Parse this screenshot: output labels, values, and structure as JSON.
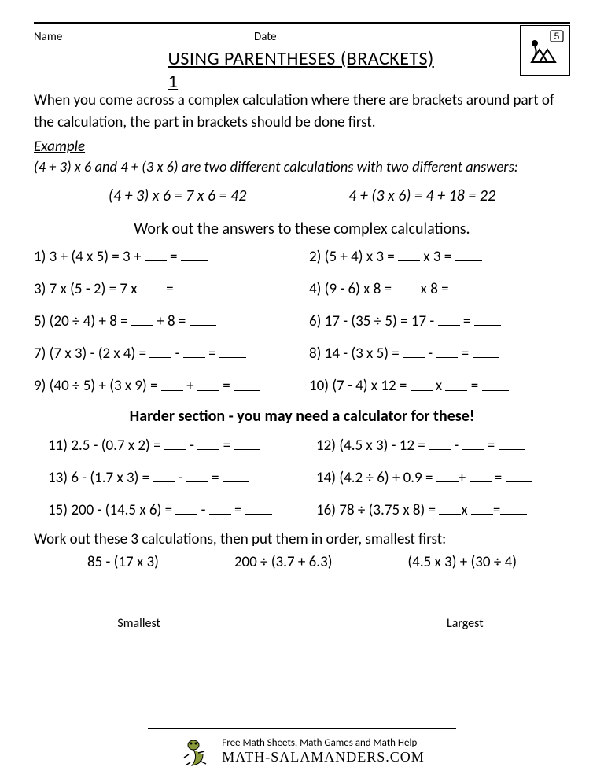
{
  "header": {
    "name_label": "Name",
    "date_label": "Date",
    "title": "USING PARENTHESES (BRACKETS) 1",
    "grade_badge": "5"
  },
  "intro": "When you come across a complex calculation where there are brackets around part of the calculation, the part in brackets should be done first.",
  "example": {
    "label": "Example",
    "text": "(4 + 3) x 6 and 4 + (3 x 6) are two different calculations with two different answers:",
    "worked_left": "(4 + 3) x 6 = 7 x 6 = 42",
    "worked_right": "4 + (3 x 6) = 4 + 18 = 22"
  },
  "instruction": "Work out the answers to these complex calculations.",
  "problems_main": [
    {
      "n": "1)",
      "pre": "3 + (4 x 5) = 3 + ",
      "mid": " = ",
      "tail": ""
    },
    {
      "n": "2)",
      "pre": "(5 + 4) x 3 = ",
      "mid": " x 3 = ",
      "tail": ""
    },
    {
      "n": "3)",
      "pre": "7 x (5 - 2) = 7 x ",
      "mid": " = ",
      "tail": ""
    },
    {
      "n": "4)",
      "pre": "(9 - 6) x 8 = ",
      "mid": " x 8 = ",
      "tail": ""
    },
    {
      "n": "5)",
      "pre": "(20 ÷ 4) + 8 = ",
      "mid": " + 8 = ",
      "tail": ""
    },
    {
      "n": "6)",
      "pre": "17 - (35 ÷ 5) = 17 - ",
      "mid": " = ",
      "tail": ""
    },
    {
      "n": "7)",
      "pre": "(7 x 3) - (2 x 4) = ",
      "mid": " - ",
      "mid2": " = ",
      "tail": ""
    },
    {
      "n": "8)",
      "pre": "14 - (3 x 5) = ",
      "mid": " - ",
      "mid2": " = ",
      "tail": ""
    },
    {
      "n": "9)",
      "pre": "(40 ÷ 5) + (3 x 9) = ",
      "mid": " + ",
      "mid2": " = ",
      "tail": ""
    },
    {
      "n": "10)",
      "pre": "(7 - 4) x 12 = ",
      "mid": " x ",
      "mid2": " = ",
      "tail": ""
    }
  ],
  "harder_heading": "Harder section - you may need a calculator for these!",
  "problems_harder": [
    {
      "n": "11)",
      "pre": "2.5 - (0.7 x 2) = ",
      "mid": " - ",
      "mid2": " = ",
      "tail": ""
    },
    {
      "n": "12)",
      "pre": "(4.5 x 3) - 12 = ",
      "mid": " - ",
      "mid2": " = ",
      "tail": ""
    },
    {
      "n": "13)",
      "pre": "6 - (1.7 x 3) = ",
      "mid": " - ",
      "mid2": " = ",
      "tail": ""
    },
    {
      "n": "14)",
      "pre": "(4.2 ÷ 6) + 0.9 = ",
      "mid": "+ ",
      "mid2": " = ",
      "tail": ""
    },
    {
      "n": "15)",
      "pre": "200 - (14.5 x 6) = ",
      "mid": " - ",
      "mid2": " = ",
      "tail": ""
    },
    {
      "n": "16)",
      "pre": "78 ÷ (3.75 x 8) = ",
      "mid": "x ",
      "mid2": "=",
      "tail": ""
    }
  ],
  "order": {
    "instruction": "Work out these 3 calculations, then put them in order, smallest first:",
    "items": [
      "85 - (17 x 3)",
      "200 ÷ (3.7 + 6.3)",
      "(4.5 x 3) + (30 ÷ 4)"
    ],
    "smallest_label": "Smallest",
    "largest_label": "Largest"
  },
  "footer": {
    "line1": "Free Math Sheets, Math Games and Math Help",
    "line2": "MATH-SALAMANDERS.COM"
  },
  "colors": {
    "text": "#000000",
    "background": "#ffffff",
    "rule": "#000000"
  },
  "typography": {
    "body_fontsize_pt": 14,
    "title_fontsize_pt": 18,
    "font_family": "Calibri"
  }
}
